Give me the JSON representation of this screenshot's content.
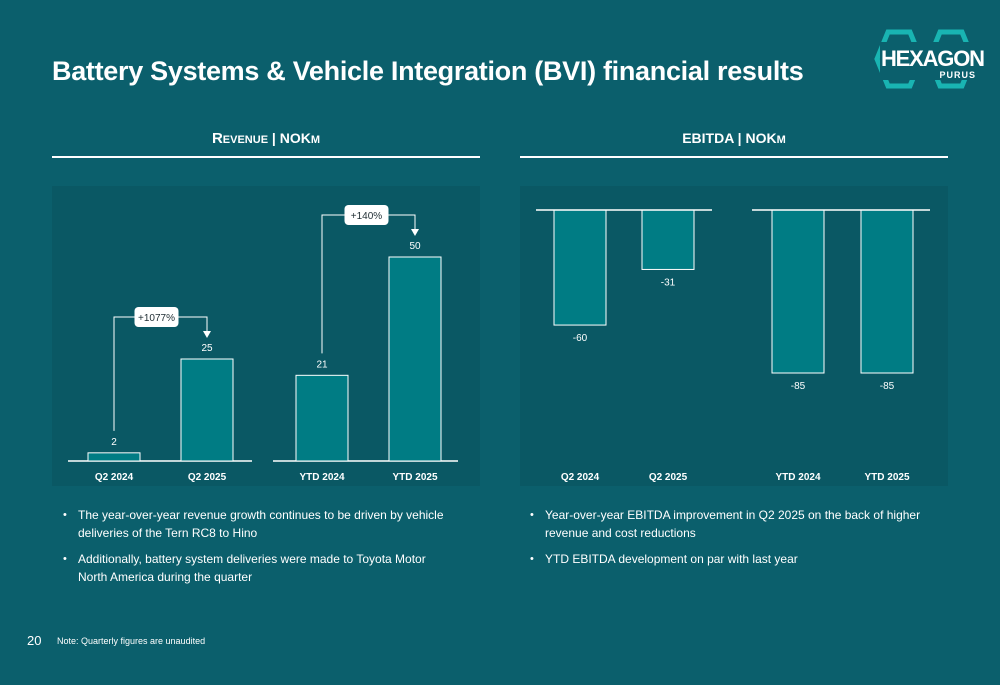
{
  "title": "Battery Systems & Vehicle Integration (BVI) financial results",
  "logo": {
    "line1": "HEXAGON",
    "line2": "PURUS"
  },
  "revenue": {
    "heading": "Revenue | NOKm"
  },
  "ebitda": {
    "heading": "EBITDA | NOKm"
  },
  "chart_data": [
    {
      "type": "bar",
      "title": "Revenue | NOKm",
      "groups": [
        {
          "categories": [
            "Q2 2024",
            "Q2 2025"
          ],
          "values": [
            2,
            25
          ],
          "labels": [
            "2",
            "25"
          ],
          "growth": "+1077%"
        },
        {
          "categories": [
            "YTD 2024",
            "YTD 2025"
          ],
          "values": [
            21,
            50
          ],
          "labels": [
            "21",
            "50"
          ],
          "growth": "+140%"
        }
      ],
      "ylim": [
        0,
        50
      ]
    },
    {
      "type": "bar",
      "title": "EBITDA | NOKm",
      "groups": [
        {
          "categories": [
            "Q2 2024",
            "Q2 2025"
          ],
          "values": [
            -60,
            -31
          ],
          "labels": [
            "-60",
            "-31"
          ]
        },
        {
          "categories": [
            "YTD 2024",
            "YTD 2025"
          ],
          "values": [
            -85,
            -85
          ],
          "labels": [
            "-85",
            "-85"
          ]
        }
      ],
      "ylim": [
        -85,
        0
      ]
    }
  ],
  "revenue_bullets": [
    "The year-over-year revenue growth continues to be driven by vehicle deliveries of the Tern RC8 to Hino",
    "Additionally, battery system deliveries were made to Toyota Motor North America during the quarter"
  ],
  "ebitda_bullets": [
    "Year-over-year EBITDA improvement in Q2 2025 on the back of higher revenue and cost reductions",
    "YTD EBITDA development on par with last year"
  ],
  "footer": {
    "page_number": "20",
    "note": "Note: Quarterly figures are unaudited"
  },
  "colors": {
    "background": "#0b5f6c",
    "bar_fill": "#007c84",
    "bar_stroke": "#ffffff",
    "accent": "#ffffff"
  }
}
